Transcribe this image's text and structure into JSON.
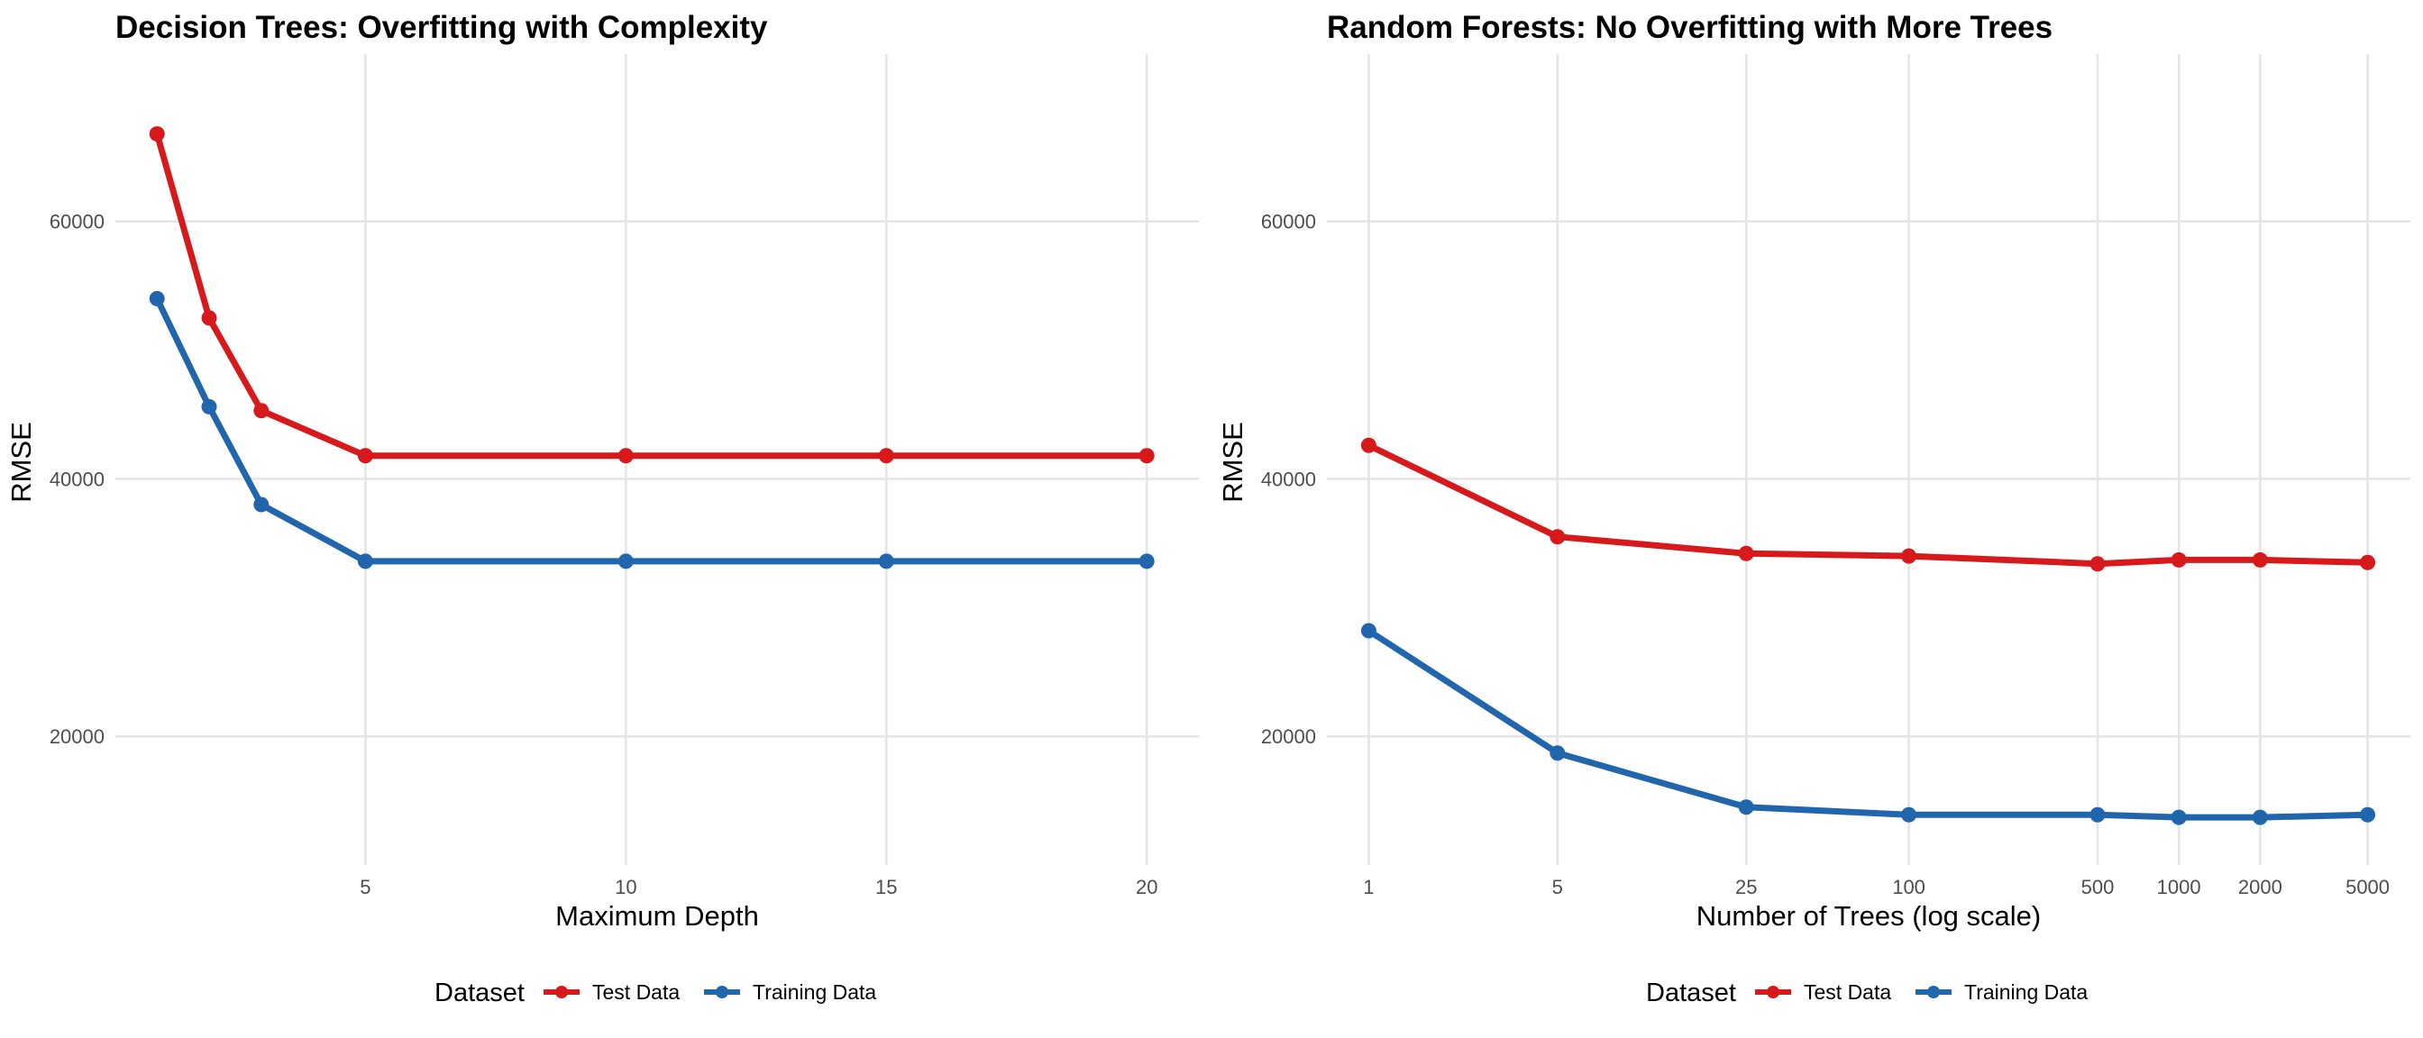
{
  "colors": {
    "test": "#D7191C",
    "training": "#2166AC",
    "grid": "#E5E5E5",
    "tick_text": "#4D4D4D"
  },
  "chart_data": [
    {
      "type": "line",
      "title": "Decision Trees: Overfitting with Complexity",
      "xlabel": "Maximum Depth",
      "ylabel": "RMSE",
      "x_scale": "linear",
      "xlim": [
        0.2,
        21.0
      ],
      "ylim": [
        10000,
        73000
      ],
      "x_ticks": [
        5,
        10,
        15,
        20
      ],
      "x_tick_labels": [
        "5",
        "10",
        "15",
        "20"
      ],
      "y_ticks": [
        20000,
        40000,
        60000
      ],
      "y_tick_labels": [
        "20000",
        "40000",
        "60000"
      ],
      "grid": true,
      "legend": {
        "title": "Dataset",
        "position": "bottom",
        "entries": [
          "Test Data",
          "Training Data"
        ]
      },
      "series": [
        {
          "name": "Test Data",
          "color_key": "test",
          "x": [
            1,
            2,
            3,
            5,
            10,
            15,
            20
          ],
          "y": [
            66800,
            52500,
            45300,
            41800,
            41800,
            41800,
            41800
          ]
        },
        {
          "name": "Training Data",
          "color_key": "training",
          "x": [
            1,
            2,
            3,
            5,
            10,
            15,
            20
          ],
          "y": [
            54000,
            45600,
            38000,
            33600,
            33600,
            33600,
            33600
          ]
        }
      ]
    },
    {
      "type": "line",
      "title": "Random Forests: No Overfitting with More Trees",
      "xlabel": "Number of Trees (log scale)",
      "ylabel": "RMSE",
      "x_scale": "log10",
      "xlim": [
        0.7,
        7200
      ],
      "ylim": [
        10000,
        73000
      ],
      "x_ticks": [
        1,
        5,
        25,
        100,
        500,
        1000,
        2000,
        5000
      ],
      "x_tick_labels": [
        "1",
        "5",
        "25",
        "100",
        "500",
        "1000",
        "2000",
        "5000"
      ],
      "y_ticks": [
        20000,
        40000,
        60000
      ],
      "y_tick_labels": [
        "20000",
        "40000",
        "60000"
      ],
      "grid": true,
      "legend": {
        "title": "Dataset",
        "position": "bottom",
        "entries": [
          "Test Data",
          "Training Data"
        ]
      },
      "series": [
        {
          "name": "Test Data",
          "color_key": "test",
          "x": [
            1,
            5,
            25,
            100,
            500,
            1000,
            2000,
            5000
          ],
          "y": [
            42600,
            35500,
            34200,
            34000,
            33400,
            33700,
            33700,
            33500
          ]
        },
        {
          "name": "Training Data",
          "color_key": "training",
          "x": [
            1,
            5,
            25,
            100,
            500,
            1000,
            2000,
            5000
          ],
          "y": [
            28200,
            18700,
            14500,
            13900,
            13900,
            13700,
            13700,
            13900
          ]
        }
      ]
    }
  ]
}
